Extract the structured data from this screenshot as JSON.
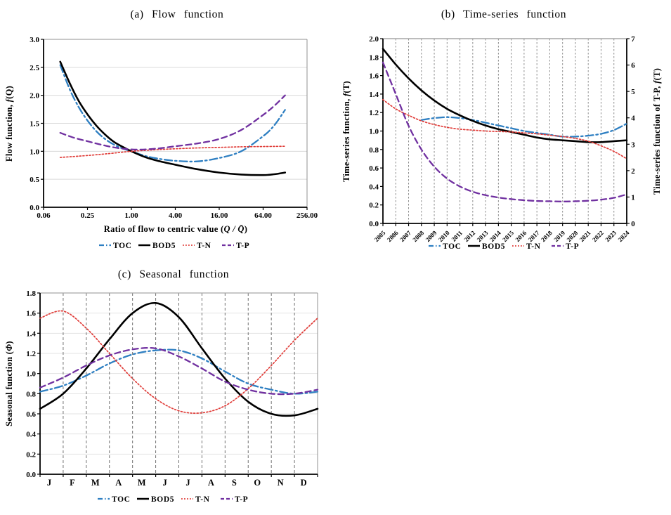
{
  "series_labels": [
    "TOC",
    "BOD5",
    "T-N",
    "T-P"
  ],
  "series_styles": {
    "TOC": {
      "color": "#2E7FC2",
      "width": 2.3,
      "dash": "11 4 2.5 4",
      "legend_dash": "7 3 1.5 3"
    },
    "BOD5": {
      "color": "#000000",
      "width": 2.6,
      "dash": "",
      "legend_dash": ""
    },
    "T-N": {
      "color": "#E03C38",
      "width": 1.7,
      "dash": "2 2.6",
      "legend_dash": "1.8 2.2"
    },
    "T-P": {
      "color": "#7030A0",
      "width": 2.3,
      "dash": "8 5",
      "legend_dash": "5 3"
    }
  },
  "chart_data": [
    {
      "type": "line",
      "title": "(a) Flow function",
      "ylabel": {
        "pre": "Flow function, ",
        "it": "f",
        "post": "(Q)"
      },
      "xlabel": {
        "pre": "Ratio of flow to centric value (",
        "it": "Q / Q̄",
        "post": ")"
      },
      "x_scale": "log4",
      "x_ticks": [
        "0.06",
        "0.25",
        "1.00",
        "4.00",
        "16.00",
        "64.00",
        "256.00"
      ],
      "x_tick_u": [
        -2,
        -1,
        0,
        1,
        2,
        3,
        4
      ],
      "y_ticks": [
        "0.0",
        "0.5",
        "1.0",
        "1.5",
        "2.0",
        "2.5",
        "3.0"
      ],
      "ylim": [
        0,
        3
      ],
      "legend_position": "bottom",
      "grid": {
        "horizontal": true,
        "vertical": false
      },
      "series": [
        {
          "name": "TOC",
          "u": [
            -1.62,
            -1.4,
            -1.2,
            -1,
            -0.8,
            -0.6,
            -0.4,
            -0.2,
            0,
            0.3,
            0.6,
            1,
            1.5,
            2,
            2.5,
            3,
            3.25,
            3.5
          ],
          "values": [
            2.54,
            2.1,
            1.79,
            1.55,
            1.36,
            1.22,
            1.12,
            1.05,
            1.0,
            0.92,
            0.87,
            0.83,
            0.82,
            0.88,
            1.0,
            1.27,
            1.46,
            1.74
          ]
        },
        {
          "name": "BOD5",
          "u": [
            -1.62,
            -1.4,
            -1.2,
            -1,
            -0.8,
            -0.6,
            -0.4,
            -0.2,
            0,
            0.3,
            0.6,
            1,
            1.5,
            2,
            2.5,
            3,
            3.25,
            3.5
          ],
          "values": [
            2.6,
            2.21,
            1.9,
            1.66,
            1.46,
            1.3,
            1.17,
            1.08,
            1.0,
            0.9,
            0.83,
            0.76,
            0.68,
            0.62,
            0.585,
            0.575,
            0.59,
            0.62
          ]
        },
        {
          "name": "T-N",
          "u": [
            -1.62,
            -1,
            -0.5,
            0,
            0.5,
            1,
            1.5,
            2,
            2.5,
            3,
            3.5
          ],
          "values": [
            0.89,
            0.925,
            0.96,
            1.0,
            1.025,
            1.045,
            1.06,
            1.07,
            1.08,
            1.085,
            1.09
          ]
        },
        {
          "name": "T-P",
          "u": [
            -1.62,
            -1.3,
            -1,
            -0.7,
            -0.4,
            -0.1,
            0.2,
            0.6,
            1,
            1.5,
            2,
            2.5,
            3,
            3.25,
            3.5
          ],
          "values": [
            1.33,
            1.24,
            1.18,
            1.12,
            1.07,
            1.04,
            1.03,
            1.05,
            1.09,
            1.14,
            1.22,
            1.38,
            1.65,
            1.81,
            2.0
          ]
        }
      ]
    },
    {
      "type": "line",
      "title": "(b) Time-series function",
      "ylabel_left": {
        "pre": "Time-series function, ",
        "it": "f",
        "post": "(T)"
      },
      "ylabel_right": {
        "pre": "Time-series function of T-P, ",
        "it": "f",
        "post": "(T)"
      },
      "years": [
        "2005",
        "2006",
        "2007",
        "2008",
        "2009",
        "2010",
        "2011",
        "2012",
        "2013",
        "2014",
        "2015",
        "2016",
        "2017",
        "2018",
        "2019",
        "2020",
        "2021",
        "2022",
        "2023",
        "2024"
      ],
      "y_ticks_left": [
        "0.0",
        "0.2",
        "0.4",
        "0.6",
        "0.8",
        "1.0",
        "1.2",
        "1.4",
        "1.6",
        "1.8",
        "2.0"
      ],
      "y_ticks_right": [
        "0",
        "1",
        "2",
        "3",
        "4",
        "5",
        "6",
        "7"
      ],
      "ylim_left": [
        0,
        2
      ],
      "ylim_right": [
        0,
        7
      ],
      "legend_position": "bottom",
      "grid": {
        "horizontal": false,
        "vertical": true
      },
      "series": [
        {
          "name": "TOC",
          "axis": "left",
          "start_year": 2008,
          "values": [
            1.12,
            1.14,
            1.15,
            1.14,
            1.12,
            1.09,
            1.06,
            1.03,
            1.0,
            0.98,
            0.96,
            0.94,
            0.94,
            0.95,
            0.97,
            1.01,
            1.08
          ]
        },
        {
          "name": "BOD5",
          "axis": "left",
          "start_year": 2005,
          "values": [
            1.89,
            1.72,
            1.57,
            1.44,
            1.33,
            1.24,
            1.17,
            1.11,
            1.06,
            1.02,
            0.99,
            0.96,
            0.93,
            0.91,
            0.9,
            0.89,
            0.88,
            0.88,
            0.89,
            0.9
          ]
        },
        {
          "name": "T-N",
          "axis": "left",
          "start_year": 2005,
          "values": [
            1.34,
            1.24,
            1.17,
            1.11,
            1.07,
            1.04,
            1.02,
            1.01,
            1.0,
            0.995,
            0.99,
            0.98,
            0.97,
            0.955,
            0.94,
            0.92,
            0.89,
            0.84,
            0.78,
            0.7
          ]
        },
        {
          "name": "T-P",
          "axis": "right",
          "start_year": 2005,
          "values": [
            6.1,
            4.9,
            3.7,
            2.8,
            2.15,
            1.7,
            1.4,
            1.2,
            1.07,
            0.98,
            0.92,
            0.88,
            0.85,
            0.84,
            0.83,
            0.84,
            0.86,
            0.9,
            0.97,
            1.1
          ]
        }
      ]
    },
    {
      "type": "line",
      "title": "(c) Seasonal function",
      "ylabel": {
        "pre": "Seasonal function (",
        "it": "Φ",
        "post": ")"
      },
      "months": [
        "J",
        "F",
        "M",
        "A",
        "M",
        "J",
        "J",
        "A",
        "S",
        "O",
        "N",
        "D"
      ],
      "y_ticks": [
        "0.0",
        "0.2",
        "0.4",
        "0.6",
        "0.8",
        "1.0",
        "1.2",
        "1.4",
        "1.6",
        "1.8"
      ],
      "ylim": [
        0,
        1.8
      ],
      "legend_position": "bottom",
      "grid": {
        "horizontal": true,
        "vertical": true
      },
      "series": [
        {
          "name": "TOC",
          "values": [
            0.82,
            0.88,
            0.98,
            1.1,
            1.19,
            1.23,
            1.23,
            1.15,
            1.02,
            0.9,
            0.84,
            0.8,
            0.82
          ]
        },
        {
          "name": "BOD5",
          "values": [
            0.65,
            0.8,
            1.05,
            1.34,
            1.6,
            1.7,
            1.56,
            1.25,
            0.95,
            0.72,
            0.6,
            0.585,
            0.65
          ]
        },
        {
          "name": "T-N",
          "values": [
            1.55,
            1.62,
            1.45,
            1.2,
            0.95,
            0.75,
            0.63,
            0.61,
            0.68,
            0.85,
            1.08,
            1.33,
            1.55
          ]
        },
        {
          "name": "T-P",
          "values": [
            0.86,
            0.96,
            1.08,
            1.18,
            1.24,
            1.25,
            1.17,
            1.05,
            0.92,
            0.84,
            0.8,
            0.8,
            0.84
          ]
        }
      ]
    }
  ]
}
